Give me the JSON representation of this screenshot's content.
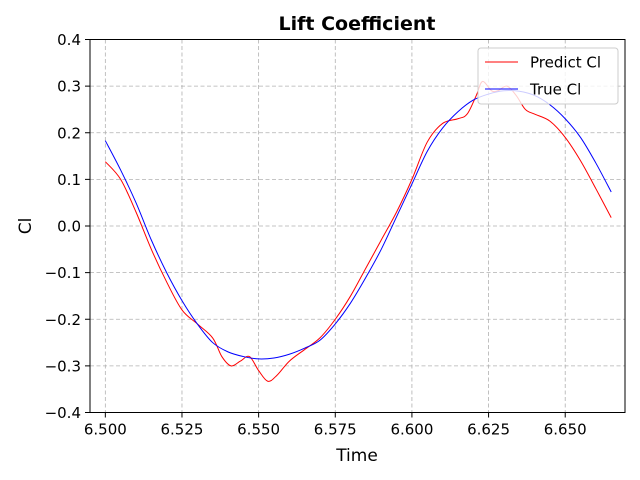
{
  "chart_data": {
    "type": "line",
    "title": "Lift Coefficient",
    "xlabel": "Time",
    "ylabel": "Cl",
    "xlim": [
      6.495,
      6.6695
    ],
    "ylim": [
      -0.4,
      0.4
    ],
    "xticks": [
      6.5,
      6.525,
      6.55,
      6.575,
      6.6,
      6.625,
      6.65
    ],
    "xtick_labels": [
      "6.500",
      "6.525",
      "6.550",
      "6.575",
      "6.600",
      "6.625",
      "6.650"
    ],
    "yticks": [
      -0.4,
      -0.3,
      -0.2,
      -0.1,
      0.0,
      0.1,
      0.2,
      0.3,
      0.4
    ],
    "ytick_labels": [
      "−0.4",
      "−0.3",
      "−0.2",
      "−0.1",
      "0.0",
      "0.1",
      "0.2",
      "0.3",
      "0.4"
    ],
    "grid": true,
    "legend_position": "top-right",
    "series": [
      {
        "name": "Predict Cl",
        "color": "#ff0000",
        "x": [
          6.5,
          6.505,
          6.51,
          6.515,
          6.52,
          6.525,
          6.53,
          6.535,
          6.538,
          6.541,
          6.544,
          6.547,
          6.55,
          6.553,
          6.556,
          6.56,
          6.565,
          6.57,
          6.575,
          6.58,
          6.585,
          6.59,
          6.595,
          6.6,
          6.605,
          6.61,
          6.615,
          6.618,
          6.621,
          6.623,
          6.626,
          6.628,
          6.631,
          6.634,
          6.637,
          6.64,
          6.645,
          6.65,
          6.655,
          6.66,
          6.665
        ],
        "y": [
          0.138,
          0.1,
          0.03,
          -0.05,
          -0.12,
          -0.18,
          -0.21,
          -0.24,
          -0.28,
          -0.3,
          -0.29,
          -0.28,
          -0.31,
          -0.333,
          -0.32,
          -0.29,
          -0.265,
          -0.24,
          -0.2,
          -0.15,
          -0.09,
          -0.03,
          0.03,
          0.1,
          0.18,
          0.22,
          0.23,
          0.24,
          0.28,
          0.31,
          0.29,
          0.29,
          0.3,
          0.28,
          0.25,
          0.24,
          0.225,
          0.19,
          0.14,
          0.08,
          0.018
        ]
      },
      {
        "name": "True Cl",
        "color": "#0000ff",
        "x": [
          6.5,
          6.505,
          6.51,
          6.515,
          6.52,
          6.525,
          6.53,
          6.535,
          6.54,
          6.545,
          6.55,
          6.555,
          6.56,
          6.565,
          6.57,
          6.575,
          6.58,
          6.585,
          6.59,
          6.595,
          6.6,
          6.605,
          6.61,
          6.615,
          6.62,
          6.625,
          6.63,
          6.635,
          6.64,
          6.645,
          6.65,
          6.655,
          6.66,
          6.665
        ],
        "y": [
          0.183,
          0.12,
          0.05,
          -0.03,
          -0.1,
          -0.16,
          -0.21,
          -0.25,
          -0.27,
          -0.28,
          -0.285,
          -0.283,
          -0.275,
          -0.262,
          -0.245,
          -0.21,
          -0.165,
          -0.11,
          -0.05,
          0.02,
          0.09,
          0.16,
          0.21,
          0.245,
          0.27,
          0.283,
          0.29,
          0.289,
          0.28,
          0.26,
          0.23,
          0.19,
          0.135,
          0.073
        ]
      }
    ]
  }
}
